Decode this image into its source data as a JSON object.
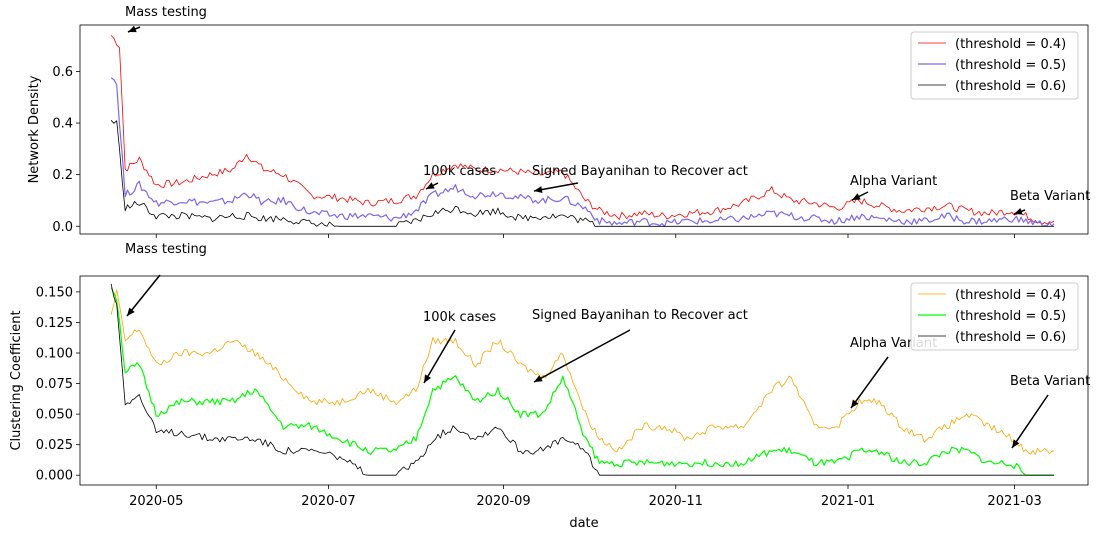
{
  "chart_data": [
    {
      "type": "line",
      "title": "",
      "xlabel": "",
      "ylabel": "Network Density",
      "ylim": [
        -0.03,
        0.78
      ],
      "yticks": [
        0.0,
        0.2,
        0.4,
        0.6
      ],
      "ytick_labels": [
        "0.0",
        "0.2",
        "0.4",
        "0.6"
      ],
      "legend": "upper-right",
      "grid": false,
      "x_range": [
        "2020-04-15",
        "2021-03-15"
      ],
      "series": [
        {
          "name": "(threshold = 0.4)",
          "color": "#ff0000",
          "width": 0.8,
          "x": [
            "2020-04-15",
            "2020-04-18",
            "2020-04-20",
            "2020-04-25",
            "2020-05-01",
            "2020-05-10",
            "2020-05-20",
            "2020-05-28",
            "2020-06-02",
            "2020-06-08",
            "2020-06-15",
            "2020-06-25",
            "2020-07-05",
            "2020-07-15",
            "2020-07-25",
            "2020-08-01",
            "2020-08-07",
            "2020-08-15",
            "2020-08-22",
            "2020-08-30",
            "2020-09-07",
            "2020-09-15",
            "2020-09-22",
            "2020-09-30",
            "2020-10-05",
            "2020-10-12",
            "2020-10-20",
            "2020-10-28",
            "2020-11-05",
            "2020-11-15",
            "2020-11-25",
            "2020-12-05",
            "2020-12-12",
            "2020-12-20",
            "2020-12-28",
            "2021-01-05",
            "2021-01-12",
            "2021-01-20",
            "2021-01-28",
            "2021-02-05",
            "2021-02-12",
            "2021-02-20",
            "2021-02-28",
            "2021-03-05",
            "2021-03-10",
            "2021-03-15"
          ],
          "values": [
            0.74,
            0.7,
            0.22,
            0.26,
            0.16,
            0.17,
            0.2,
            0.22,
            0.28,
            0.22,
            0.2,
            0.12,
            0.11,
            0.09,
            0.1,
            0.12,
            0.2,
            0.24,
            0.22,
            0.22,
            0.21,
            0.2,
            0.21,
            0.1,
            0.06,
            0.04,
            0.05,
            0.04,
            0.05,
            0.06,
            0.09,
            0.14,
            0.1,
            0.09,
            0.07,
            0.1,
            0.08,
            0.06,
            0.07,
            0.08,
            0.06,
            0.05,
            0.06,
            0.04,
            0.02,
            0.02
          ]
        },
        {
          "name": "(threshold = 0.5)",
          "color": "#7b68ee",
          "width": 1.2,
          "x": [
            "2020-04-15",
            "2020-04-17",
            "2020-04-20",
            "2020-04-25",
            "2020-05-01",
            "2020-05-10",
            "2020-05-20",
            "2020-05-28",
            "2020-06-02",
            "2020-06-08",
            "2020-06-15",
            "2020-06-25",
            "2020-07-05",
            "2020-07-15",
            "2020-07-25",
            "2020-08-01",
            "2020-08-07",
            "2020-08-15",
            "2020-08-22",
            "2020-08-30",
            "2020-09-07",
            "2020-09-15",
            "2020-09-22",
            "2020-09-30",
            "2020-10-05",
            "2020-10-12",
            "2020-10-20",
            "2020-10-28",
            "2020-11-05",
            "2020-11-15",
            "2020-11-25",
            "2020-12-05",
            "2020-12-12",
            "2020-12-20",
            "2020-12-28",
            "2021-01-05",
            "2021-01-12",
            "2021-01-20",
            "2021-01-28",
            "2021-02-05",
            "2021-02-12",
            "2021-02-20",
            "2021-02-28",
            "2021-03-05",
            "2021-03-10",
            "2021-03-15"
          ],
          "values": [
            0.59,
            0.55,
            0.12,
            0.16,
            0.09,
            0.1,
            0.09,
            0.1,
            0.13,
            0.09,
            0.1,
            0.05,
            0.04,
            0.04,
            0.03,
            0.06,
            0.12,
            0.15,
            0.12,
            0.13,
            0.11,
            0.1,
            0.11,
            0.07,
            0.02,
            0.01,
            0.02,
            0.01,
            0.02,
            0.02,
            0.03,
            0.05,
            0.04,
            0.03,
            0.02,
            0.04,
            0.03,
            0.02,
            0.02,
            0.04,
            0.02,
            0.02,
            0.03,
            0.02,
            0.01,
            0.01
          ]
        },
        {
          "name": "(threshold = 0.6)",
          "color": "#000000",
          "width": 0.8,
          "x": [
            "2020-04-15",
            "2020-04-17",
            "2020-04-20",
            "2020-04-25",
            "2020-05-01",
            "2020-05-10",
            "2020-05-20",
            "2020-05-28",
            "2020-06-02",
            "2020-06-08",
            "2020-06-15",
            "2020-06-25",
            "2020-07-05",
            "2020-07-15",
            "2020-07-25",
            "2020-08-01",
            "2020-08-07",
            "2020-08-15",
            "2020-08-22",
            "2020-08-30",
            "2020-09-07",
            "2020-09-15",
            "2020-09-22",
            "2020-09-30",
            "2020-10-05",
            "2020-10-12",
            "2020-10-20",
            "2020-10-28",
            "2020-11-05",
            "2020-11-15",
            "2020-11-25",
            "2020-12-05",
            "2020-12-12",
            "2020-12-20",
            "2020-12-28",
            "2021-01-05",
            "2021-01-12",
            "2021-01-20",
            "2021-01-28",
            "2021-02-05",
            "2021-02-12",
            "2021-02-20",
            "2021-02-28",
            "2021-03-05",
            "2021-03-10",
            "2021-03-15"
          ],
          "values": [
            0.41,
            0.4,
            0.07,
            0.09,
            0.04,
            0.04,
            0.03,
            0.04,
            0.04,
            0.03,
            0.03,
            0.01,
            0.0,
            0.0,
            0.0,
            0.02,
            0.05,
            0.07,
            0.05,
            0.06,
            0.03,
            0.04,
            0.04,
            0.02,
            0.0,
            0.0,
            0.0,
            0.0,
            0.0,
            0.0,
            0.0,
            0.0,
            0.0,
            0.0,
            0.0,
            0.0,
            0.0,
            0.0,
            0.0,
            0.0,
            0.0,
            0.0,
            0.0,
            0.0,
            0.0,
            0.0
          ]
        }
      ],
      "annotations": [
        {
          "text": "Mass testing",
          "x": "2020-04-15",
          "y": 0.74
        },
        {
          "text": "100k cases",
          "x": "2020-08-01",
          "y": 0.13
        },
        {
          "text": "Signed Bayanihan to Recover act",
          "x": "2020-09-10",
          "y": 0.125
        },
        {
          "text": "Alpha Variant",
          "x": "2021-01-05",
          "y": 0.09
        },
        {
          "text": "Beta Variant",
          "x": "2021-03-05",
          "y": 0.035
        }
      ]
    },
    {
      "type": "line",
      "title": "",
      "xlabel": "date",
      "ylabel": "Clustering Coefficient",
      "ylim": [
        -0.008,
        0.163
      ],
      "yticks": [
        0.0,
        0.025,
        0.05,
        0.075,
        0.1,
        0.125,
        0.15
      ],
      "ytick_labels": [
        "0.000",
        "0.025",
        "0.050",
        "0.075",
        "0.100",
        "0.125",
        "0.150"
      ],
      "xticks": [
        "2020-05-01",
        "2020-07-01",
        "2020-09-01",
        "2020-11-01",
        "2021-01-01",
        "2021-03-01"
      ],
      "xtick_labels": [
        "2020-05",
        "2020-07",
        "2020-09",
        "2020-11",
        "2021-01",
        "2021-03"
      ],
      "legend": "upper-right",
      "grid": false,
      "x_range": [
        "2020-04-15",
        "2021-03-15"
      ],
      "series": [
        {
          "name": "(threshold = 0.4)",
          "color": "#ffa500",
          "width": 0.8,
          "x": [
            "2020-04-15",
            "2020-04-17",
            "2020-04-20",
            "2020-04-25",
            "2020-05-01",
            "2020-05-10",
            "2020-05-20",
            "2020-05-28",
            "2020-06-05",
            "2020-06-15",
            "2020-06-25",
            "2020-07-05",
            "2020-07-15",
            "2020-07-25",
            "2020-08-01",
            "2020-08-07",
            "2020-08-15",
            "2020-08-22",
            "2020-08-30",
            "2020-09-07",
            "2020-09-15",
            "2020-09-22",
            "2020-09-30",
            "2020-10-05",
            "2020-10-12",
            "2020-10-20",
            "2020-10-28",
            "2020-11-05",
            "2020-11-15",
            "2020-11-25",
            "2020-12-05",
            "2020-12-12",
            "2020-12-20",
            "2020-12-28",
            "2021-01-05",
            "2021-01-12",
            "2021-01-20",
            "2021-01-28",
            "2021-02-05",
            "2021-02-12",
            "2021-02-20",
            "2021-02-28",
            "2021-03-05",
            "2021-03-10",
            "2021-03-15"
          ],
          "values": [
            0.13,
            0.15,
            0.11,
            0.12,
            0.09,
            0.1,
            0.1,
            0.11,
            0.1,
            0.08,
            0.06,
            0.06,
            0.07,
            0.06,
            0.07,
            0.11,
            0.11,
            0.09,
            0.11,
            0.09,
            0.08,
            0.1,
            0.05,
            0.03,
            0.02,
            0.04,
            0.04,
            0.03,
            0.04,
            0.04,
            0.07,
            0.08,
            0.04,
            0.04,
            0.06,
            0.06,
            0.04,
            0.03,
            0.04,
            0.05,
            0.04,
            0.03,
            0.02,
            0.02,
            0.02
          ]
        },
        {
          "name": "(threshold = 0.5)",
          "color": "#00ff00",
          "width": 1.2,
          "x": [
            "2020-04-15",
            "2020-04-17",
            "2020-04-20",
            "2020-04-25",
            "2020-05-01",
            "2020-05-10",
            "2020-05-20",
            "2020-05-28",
            "2020-06-05",
            "2020-06-15",
            "2020-06-25",
            "2020-07-05",
            "2020-07-15",
            "2020-07-25",
            "2020-08-01",
            "2020-08-07",
            "2020-08-15",
            "2020-08-22",
            "2020-08-30",
            "2020-09-07",
            "2020-09-15",
            "2020-09-22",
            "2020-09-30",
            "2020-10-05",
            "2020-10-12",
            "2020-10-20",
            "2020-10-28",
            "2020-11-05",
            "2020-11-15",
            "2020-11-25",
            "2020-12-05",
            "2020-12-12",
            "2020-12-20",
            "2020-12-28",
            "2021-01-05",
            "2021-01-12",
            "2021-01-20",
            "2021-01-28",
            "2021-02-05",
            "2021-02-12",
            "2021-02-20",
            "2021-02-28",
            "2021-03-05",
            "2021-03-10",
            "2021-03-15"
          ],
          "values": [
            0.155,
            0.145,
            0.085,
            0.09,
            0.05,
            0.06,
            0.06,
            0.06,
            0.07,
            0.04,
            0.04,
            0.03,
            0.02,
            0.02,
            0.03,
            0.07,
            0.08,
            0.06,
            0.07,
            0.05,
            0.05,
            0.08,
            0.03,
            0.01,
            0.01,
            0.01,
            0.01,
            0.01,
            0.01,
            0.01,
            0.02,
            0.02,
            0.01,
            0.01,
            0.02,
            0.02,
            0.01,
            0.01,
            0.02,
            0.02,
            0.01,
            0.01,
            0.0,
            0.0,
            0.0
          ]
        },
        {
          "name": "(threshold = 0.6)",
          "color": "#000000",
          "width": 0.8,
          "x": [
            "2020-04-15",
            "2020-04-17",
            "2020-04-20",
            "2020-04-25",
            "2020-05-01",
            "2020-05-10",
            "2020-05-20",
            "2020-05-28",
            "2020-06-05",
            "2020-06-15",
            "2020-06-25",
            "2020-07-05",
            "2020-07-15",
            "2020-07-25",
            "2020-08-01",
            "2020-08-07",
            "2020-08-15",
            "2020-08-22",
            "2020-08-30",
            "2020-09-07",
            "2020-09-15",
            "2020-09-22",
            "2020-09-30",
            "2020-10-05",
            "2020-10-12",
            "2020-10-20",
            "2020-10-28",
            "2020-11-05",
            "2020-11-15",
            "2020-11-25",
            "2020-12-05",
            "2020-12-12",
            "2020-12-20",
            "2020-12-28",
            "2021-01-05",
            "2021-01-12",
            "2021-01-20",
            "2021-01-28",
            "2021-02-05",
            "2021-02-12",
            "2021-02-20",
            "2021-02-28",
            "2021-03-05",
            "2021-03-10",
            "2021-03-15"
          ],
          "values": [
            0.155,
            0.14,
            0.06,
            0.065,
            0.035,
            0.035,
            0.03,
            0.03,
            0.03,
            0.02,
            0.02,
            0.015,
            0.0,
            0.0,
            0.01,
            0.03,
            0.04,
            0.03,
            0.04,
            0.02,
            0.02,
            0.03,
            0.02,
            0.0,
            0.0,
            0.0,
            0.0,
            0.0,
            0.0,
            0.0,
            0.0,
            0.0,
            0.0,
            0.0,
            0.0,
            0.0,
            0.0,
            0.0,
            0.0,
            0.0,
            0.0,
            0.0,
            0.0,
            0.0,
            0.0
          ]
        }
      ],
      "annotations": [
        {
          "text": "Mass testing",
          "x": "2020-04-15",
          "y": 0.13
        },
        {
          "text": "100k cases",
          "x": "2020-08-01",
          "y": 0.075
        },
        {
          "text": "Signed Bayanihan to Recover act",
          "x": "2020-09-10",
          "y": 0.075
        },
        {
          "text": "Alpha Variant",
          "x": "2021-01-05",
          "y": 0.052
        },
        {
          "text": "Beta Variant",
          "x": "2021-03-05",
          "y": 0.022
        }
      ]
    }
  ]
}
